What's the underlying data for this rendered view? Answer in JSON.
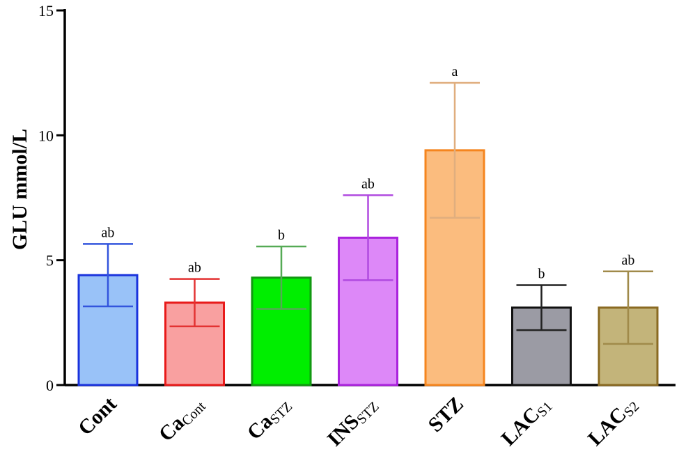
{
  "chart_data": {
    "type": "bar",
    "title": "",
    "ylabel": "GLU mmol/L",
    "xlabel": "",
    "ylim": [
      0,
      15
    ],
    "yticks": [
      0,
      5,
      10,
      15
    ],
    "grid": false,
    "categories": [
      {
        "main": "Cont",
        "sub": ""
      },
      {
        "main": "Ca",
        "sub": "Cont"
      },
      {
        "main": "Ca",
        "sub": "STZ"
      },
      {
        "main": "INS",
        "sub": "STZ"
      },
      {
        "main": "STZ",
        "sub": ""
      },
      {
        "main": "LAC",
        "sub": "S1"
      },
      {
        "main": "LAC",
        "sub": "S2"
      }
    ],
    "values": [
      4.4,
      3.3,
      4.3,
      5.9,
      9.4,
      3.1,
      3.1
    ],
    "errors": [
      1.25,
      0.95,
      1.25,
      1.7,
      2.7,
      0.9,
      1.45
    ],
    "significance": [
      "ab",
      "ab",
      "b",
      "ab",
      "a",
      "b",
      "ab"
    ],
    "fill_colors": [
      "#99c2f8",
      "#f9a0a0",
      "#00ee00",
      "#dd88f8",
      "#fbbc7e",
      "#9b9ba4",
      "#c3b47a"
    ],
    "edge_colors": [
      "#1a33dd",
      "#e81a1a",
      "#119911",
      "#aa22dd",
      "#f5851e",
      "#111111",
      "#8a6a22"
    ],
    "error_colors": [
      "#3355dd",
      "#e33333",
      "#55aa55",
      "#b04ae0",
      "#e0ae7e",
      "#222222",
      "#a08a4a"
    ]
  }
}
